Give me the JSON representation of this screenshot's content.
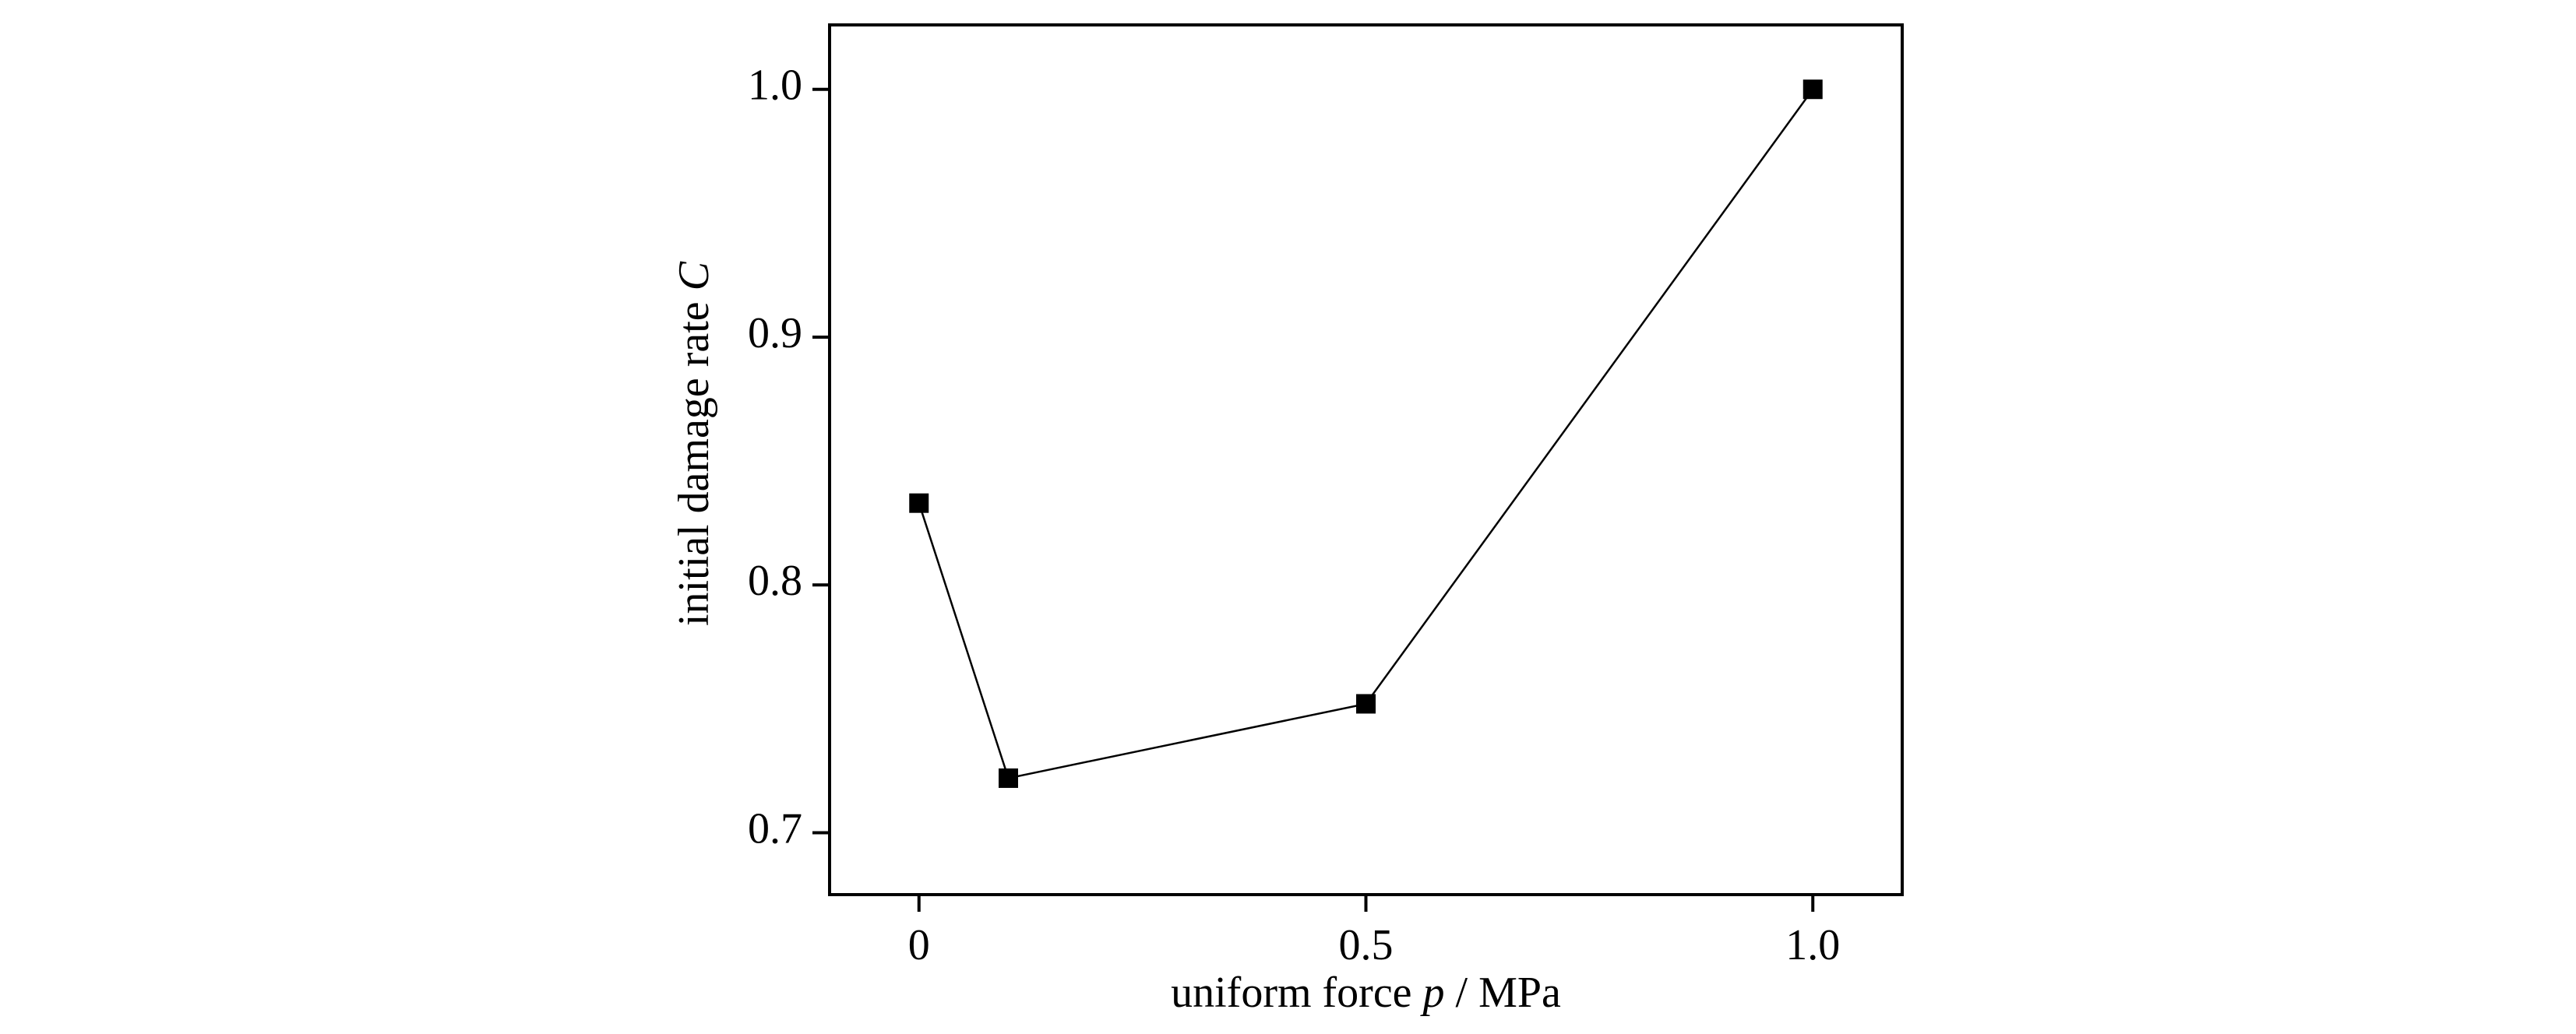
{
  "chart_data": {
    "type": "line",
    "xlabel_parts": [
      {
        "text": "uniform force "
      },
      {
        "text": "p",
        "italic": true
      },
      {
        "text": " / MPa"
      }
    ],
    "ylabel_parts": [
      {
        "text": "initial damage rate "
      },
      {
        "text": "C",
        "italic": true
      }
    ],
    "x": [
      0,
      0.1,
      0.5,
      1.0
    ],
    "series": [
      {
        "color": "#000000",
        "marker": "square",
        "values": [
          0.833,
          0.722,
          0.752,
          1.0
        ]
      }
    ],
    "xlim": [
      -0.1,
      1.1
    ],
    "xticks": [
      0,
      0.5,
      {
        "value": 1,
        "label": "1.0"
      }
    ],
    "ylim": [
      0.675,
      1.026
    ],
    "yticks": [
      0.7,
      0.8,
      0.9,
      {
        "value": 1,
        "label": "1.0"
      }
    ],
    "grid": false
  }
}
